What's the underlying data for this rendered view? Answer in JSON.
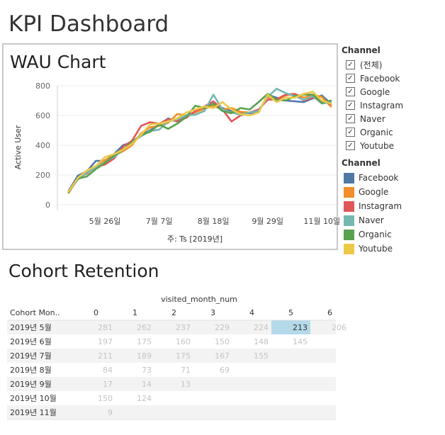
{
  "dashboard": {
    "title": "KPI Dashboard"
  },
  "wau": {
    "title": "WAU Chart",
    "ylabel": "Active User",
    "xlabel": "주: Ts [2019년]"
  },
  "channel_filter": {
    "title": "Channel",
    "items": [
      {
        "label": "(전체)",
        "checked": true
      },
      {
        "label": "Facebook",
        "checked": true
      },
      {
        "label": "Google",
        "checked": true
      },
      {
        "label": "Instagram",
        "checked": true
      },
      {
        "label": "Naver",
        "checked": true
      },
      {
        "label": "Organic",
        "checked": true
      },
      {
        "label": "Youtube",
        "checked": true
      }
    ]
  },
  "channel_legend": {
    "title": "Channel",
    "items": [
      {
        "label": "Facebook",
        "color": "#4e79a7"
      },
      {
        "label": "Google",
        "color": "#f28e2b"
      },
      {
        "label": "Instagram",
        "color": "#e15759"
      },
      {
        "label": "Naver",
        "color": "#76b7b2"
      },
      {
        "label": "Organic",
        "color": "#59a14f"
      },
      {
        "label": "Youtube",
        "color": "#edc948"
      }
    ]
  },
  "cohort": {
    "title": "Cohort Retention"
  },
  "chart_data": [
    {
      "type": "line",
      "title": "WAU Chart",
      "xlabel": "주: Ts [2019년]",
      "ylabel": "Active User",
      "ylim": [
        0,
        800
      ],
      "yticks": [
        "0",
        "200",
        "400",
        "600",
        "800"
      ],
      "xticks": [
        "5월 26일",
        "7월 7일",
        "8월 18일",
        "9월 29일",
        "11월 10일"
      ],
      "grid": true,
      "legend": "right",
      "x": [
        "2019-04-28",
        "2019-05-05",
        "2019-05-12",
        "2019-05-19",
        "2019-05-26",
        "2019-06-02",
        "2019-06-09",
        "2019-06-16",
        "2019-06-23",
        "2019-06-30",
        "2019-07-07",
        "2019-07-14",
        "2019-07-21",
        "2019-07-28",
        "2019-08-04",
        "2019-08-11",
        "2019-08-18",
        "2019-08-25",
        "2019-09-01",
        "2019-09-08",
        "2019-09-15",
        "2019-09-22",
        "2019-09-29",
        "2019-10-06",
        "2019-10-13",
        "2019-10-20",
        "2019-10-27",
        "2019-11-03",
        "2019-11-10",
        "2019-11-17"
      ],
      "series": [
        {
          "name": "Facebook",
          "color": "#4e79a7",
          "values": [
            95,
            195,
            225,
            295,
            295,
            340,
            400,
            420,
            470,
            500,
            540,
            580,
            560,
            600,
            620,
            650,
            660,
            650,
            630,
            620,
            615,
            620,
            740,
            720,
            700,
            695,
            690,
            715,
            735,
            680
          ]
        },
        {
          "name": "Google",
          "color": "#f28e2b",
          "values": [
            80,
            180,
            230,
            260,
            300,
            330,
            360,
            400,
            480,
            520,
            530,
            550,
            610,
            600,
            620,
            645,
            665,
            640,
            650,
            625,
            620,
            630,
            720,
            705,
            735,
            745,
            720,
            740,
            725,
            660
          ]
        },
        {
          "name": "Instagram",
          "color": "#e15759",
          "values": [
            90,
            180,
            210,
            255,
            270,
            310,
            390,
            430,
            530,
            555,
            545,
            575,
            560,
            585,
            630,
            660,
            695,
            640,
            560,
            600,
            620,
            640,
            705,
            710,
            740,
            745,
            700,
            720,
            700,
            675
          ]
        },
        {
          "name": "Naver",
          "color": "#76b7b2",
          "values": [
            90,
            170,
            215,
            250,
            285,
            320,
            370,
            420,
            460,
            495,
            505,
            560,
            575,
            600,
            605,
            630,
            740,
            640,
            620,
            605,
            620,
            630,
            725,
            780,
            750,
            730,
            705,
            730,
            680,
            690
          ]
        },
        {
          "name": "Organic",
          "color": "#59a14f",
          "values": [
            85,
            175,
            190,
            240,
            280,
            330,
            370,
            420,
            470,
            490,
            540,
            510,
            545,
            590,
            665,
            650,
            680,
            630,
            615,
            650,
            640,
            690,
            745,
            705,
            700,
            730,
            740,
            740,
            685,
            700
          ]
        },
        {
          "name": "Youtube",
          "color": "#edc948",
          "values": [
            90,
            180,
            230,
            260,
            320,
            340,
            370,
            410,
            470,
            540,
            545,
            560,
            580,
            620,
            640,
            660,
            650,
            690,
            640,
            610,
            600,
            620,
            740,
            690,
            720,
            720,
            745,
            760,
            700,
            680
          ]
        }
      ]
    },
    {
      "type": "table",
      "title": "Cohort Retention",
      "column_header_title": "visited_month_num",
      "row_header_title": "Cohort Mon..",
      "columns": [
        "0",
        "1",
        "2",
        "3",
        "4",
        "5",
        "6"
      ],
      "rows": [
        {
          "label": "2019년 5월",
          "values": [
            "281",
            "262",
            "237",
            "229",
            "224",
            "213",
            "206"
          ]
        },
        {
          "label": "2019년 6월",
          "values": [
            "197",
            "175",
            "160",
            "150",
            "148",
            "145",
            ""
          ]
        },
        {
          "label": "2019년 7월",
          "values": [
            "211",
            "189",
            "175",
            "167",
            "155",
            "",
            ""
          ]
        },
        {
          "label": "2019년 8월",
          "values": [
            "84",
            "73",
            "71",
            "69",
            "",
            "",
            ""
          ]
        },
        {
          "label": "2019년 9월",
          "values": [
            "17",
            "14",
            "13",
            "",
            "",
            "",
            ""
          ]
        },
        {
          "label": "2019년 10월",
          "values": [
            "150",
            "124",
            "",
            "",
            "",
            "",
            ""
          ]
        },
        {
          "label": "2019년 11월",
          "values": [
            "9",
            "",
            "",
            "",
            "",
            "",
            ""
          ]
        }
      ],
      "highlight": {
        "row": 0,
        "col": 5,
        "color": "#b4d9ea"
      }
    }
  ]
}
